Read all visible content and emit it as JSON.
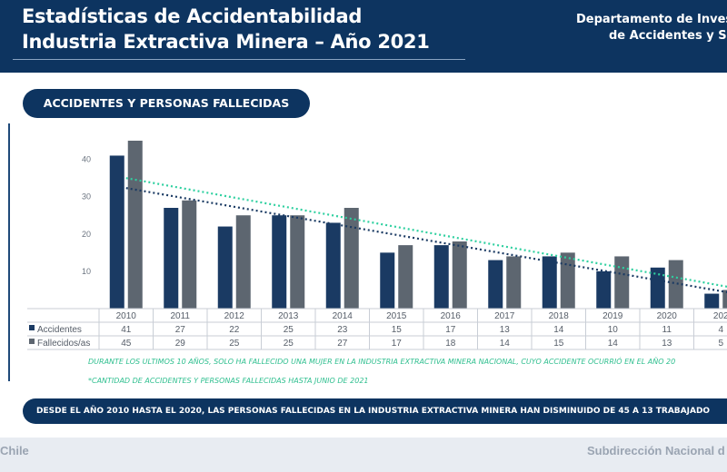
{
  "header": {
    "title_line1": "Estadísticas de Accidentabilidad",
    "title_line2": "Industria Extractiva Minera – Año 2021",
    "dept_line1": "Departamento de Inves",
    "dept_line2": "de Accidentes y Sa"
  },
  "section_pill": "ACCIDENTES Y PERSONAS FALLECIDAS",
  "notes": {
    "note1": "DURANTE LOS ULTIMOS 10 AÑOS, SOLO HA FALLECIDO UNA MUJER EN LA INDUSTRIA EXTRACTIVA MINERA NACIONAL, CUYO ACCIDENTE OCURRIÓ EN EL AÑO 20",
    "note2": "*CANTIDAD DE ACCIDENTES Y PERSONAS FALLECIDAS HASTA JUNIO DE 2021"
  },
  "banner": "DESDE EL AÑO 2010 HASTA EL 2020, LAS PERSONAS FALLECIDAS EN LA INDUSTRIA EXTRACTIVA MINERA HAN DISMINUIDO DE 45 A 13 TRABAJADO",
  "footer": {
    "left": "Chile",
    "right": "Subdirección Nacional d"
  },
  "colors": {
    "navy": "#0d3460",
    "accidentes": "#1a3a63",
    "fallecidos": "#5d6670",
    "trend_accidentes": "#1a3a63",
    "trend_fallecidos": "#2fd0a0"
  },
  "chart_data": {
    "type": "bar",
    "categories": [
      "2010",
      "2011",
      "2012",
      "2013",
      "2014",
      "2015",
      "2016",
      "2017",
      "2018",
      "2019",
      "2020",
      "202"
    ],
    "series": [
      {
        "name": "Accidentes",
        "values": [
          41,
          27,
          22,
          25,
          23,
          15,
          17,
          13,
          14,
          10,
          11,
          4
        ],
        "labels": [
          "41",
          "27",
          "22",
          "25",
          "23",
          "15",
          "17",
          "13",
          "14",
          "10",
          "11",
          "4"
        ]
      },
      {
        "name": "Fallecidos/as",
        "values": [
          45,
          29,
          25,
          25,
          27,
          17,
          18,
          14,
          15,
          14,
          13,
          5
        ],
        "labels": [
          "45",
          "29",
          "25",
          "25",
          "27",
          "17",
          "18",
          "14",
          "15",
          "14",
          "13",
          "5"
        ]
      }
    ],
    "ylim": [
      0,
      45
    ],
    "yticks": [
      "0",
      "10",
      "20",
      "30",
      "40"
    ],
    "trendlines": true,
    "grid": false,
    "legend": "table-below"
  }
}
